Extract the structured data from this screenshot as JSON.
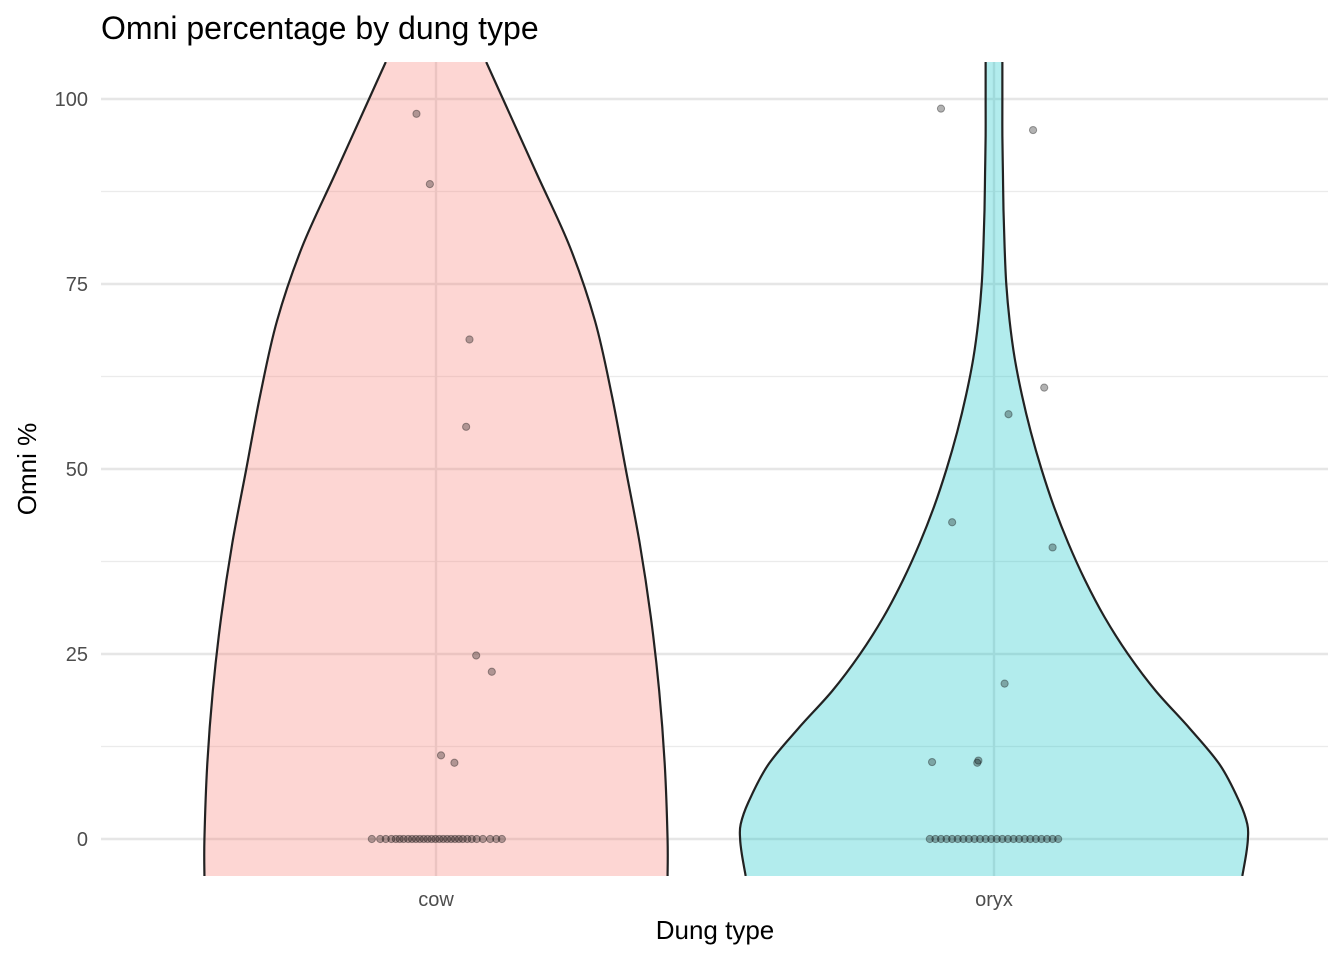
{
  "chart_data": {
    "type": "violin",
    "title": "Omni percentage by dung type",
    "xlabel": "Dung type",
    "ylabel": "Omni %",
    "categories": [
      "cow",
      "oryx"
    ],
    "ylim": [
      -5,
      105
    ],
    "y_ticks": [
      0,
      25,
      50,
      75,
      100
    ],
    "y_tick_labels": [
      "0",
      "25",
      "50",
      "75",
      "100"
    ],
    "grid": true,
    "legend": "none",
    "colors": {
      "cow": "#F8766D",
      "oryx": "#00BFC4",
      "fill_opacity": 0.3,
      "outline": "#222222",
      "points": "#000000"
    },
    "series": [
      {
        "category": "cow",
        "points": [
          {
            "jitter": -0.035,
            "y": 98
          },
          {
            "jitter": -0.011,
            "y": 88.5
          },
          {
            "jitter": 0.06,
            "y": 67.5
          },
          {
            "jitter": 0.054,
            "y": 55.7
          },
          {
            "jitter": 0.072,
            "y": 24.8
          },
          {
            "jitter": 0.1,
            "y": 22.6
          },
          {
            "jitter": 0.009,
            "y": 11.3
          },
          {
            "jitter": 0.033,
            "y": 10.3
          },
          {
            "jitter": -0.115,
            "y": 0
          },
          {
            "jitter": -0.1,
            "y": 0
          },
          {
            "jitter": -0.09,
            "y": 0
          },
          {
            "jitter": -0.08,
            "y": 0
          },
          {
            "jitter": -0.072,
            "y": 0
          },
          {
            "jitter": -0.065,
            "y": 0
          },
          {
            "jitter": -0.058,
            "y": 0
          },
          {
            "jitter": -0.05,
            "y": 0
          },
          {
            "jitter": -0.043,
            "y": 0
          },
          {
            "jitter": -0.036,
            "y": 0
          },
          {
            "jitter": -0.029,
            "y": 0
          },
          {
            "jitter": -0.022,
            "y": 0
          },
          {
            "jitter": -0.015,
            "y": 0
          },
          {
            "jitter": -0.008,
            "y": 0
          },
          {
            "jitter": -0.001,
            "y": 0
          },
          {
            "jitter": 0.006,
            "y": 0
          },
          {
            "jitter": 0.013,
            "y": 0
          },
          {
            "jitter": 0.02,
            "y": 0
          },
          {
            "jitter": 0.027,
            "y": 0
          },
          {
            "jitter": 0.034,
            "y": 0
          },
          {
            "jitter": 0.041,
            "y": 0
          },
          {
            "jitter": 0.048,
            "y": 0
          },
          {
            "jitter": 0.056,
            "y": 0
          },
          {
            "jitter": 0.064,
            "y": 0
          },
          {
            "jitter": 0.073,
            "y": 0
          },
          {
            "jitter": 0.084,
            "y": 0
          },
          {
            "jitter": 0.097,
            "y": 0
          },
          {
            "jitter": 0.108,
            "y": 0
          },
          {
            "jitter": 0.118,
            "y": 0
          }
        ],
        "density": [
          [
            -5,
            0.415
          ],
          [
            0,
            0.415
          ],
          [
            10,
            0.41
          ],
          [
            20,
            0.4
          ],
          [
            30,
            0.385
          ],
          [
            40,
            0.365
          ],
          [
            50,
            0.34
          ],
          [
            60,
            0.315
          ],
          [
            70,
            0.285
          ],
          [
            80,
            0.24
          ],
          [
            90,
            0.18
          ],
          [
            100,
            0.12
          ],
          [
            105,
            0.09
          ]
        ]
      },
      {
        "category": "oryx",
        "points": [
          {
            "jitter": -0.095,
            "y": 98.7
          },
          {
            "jitter": 0.07,
            "y": 95.8
          },
          {
            "jitter": 0.09,
            "y": 61
          },
          {
            "jitter": 0.026,
            "y": 57.4
          },
          {
            "jitter": -0.075,
            "y": 42.8
          },
          {
            "jitter": 0.105,
            "y": 39.4
          },
          {
            "jitter": 0.019,
            "y": 21
          },
          {
            "jitter": -0.111,
            "y": 10.4
          },
          {
            "jitter": -0.03,
            "y": 10.3
          },
          {
            "jitter": -0.028,
            "y": 10.6
          },
          {
            "jitter": -0.115,
            "y": 0
          },
          {
            "jitter": -0.105,
            "y": 0
          },
          {
            "jitter": -0.095,
            "y": 0
          },
          {
            "jitter": -0.085,
            "y": 0
          },
          {
            "jitter": -0.075,
            "y": 0
          },
          {
            "jitter": -0.065,
            "y": 0
          },
          {
            "jitter": -0.055,
            "y": 0
          },
          {
            "jitter": -0.045,
            "y": 0
          },
          {
            "jitter": -0.035,
            "y": 0
          },
          {
            "jitter": -0.025,
            "y": 0
          },
          {
            "jitter": -0.015,
            "y": 0
          },
          {
            "jitter": -0.005,
            "y": 0
          },
          {
            "jitter": 0.005,
            "y": 0
          },
          {
            "jitter": 0.015,
            "y": 0
          },
          {
            "jitter": 0.025,
            "y": 0
          },
          {
            "jitter": 0.035,
            "y": 0
          },
          {
            "jitter": 0.045,
            "y": 0
          },
          {
            "jitter": 0.055,
            "y": 0
          },
          {
            "jitter": 0.065,
            "y": 0
          },
          {
            "jitter": 0.075,
            "y": 0
          },
          {
            "jitter": 0.085,
            "y": 0
          },
          {
            "jitter": 0.095,
            "y": 0
          },
          {
            "jitter": 0.105,
            "y": 0
          },
          {
            "jitter": 0.115,
            "y": 0
          }
        ],
        "density": [
          [
            -5,
            0.445
          ],
          [
            -2,
            0.452
          ],
          [
            0,
            0.455
          ],
          [
            2,
            0.454
          ],
          [
            5,
            0.44
          ],
          [
            10,
            0.405
          ],
          [
            15,
            0.35
          ],
          [
            20,
            0.29
          ],
          [
            25,
            0.24
          ],
          [
            30,
            0.198
          ],
          [
            35,
            0.163
          ],
          [
            40,
            0.133
          ],
          [
            45,
            0.107
          ],
          [
            50,
            0.085
          ],
          [
            55,
            0.066
          ],
          [
            60,
            0.05
          ],
          [
            65,
            0.037
          ],
          [
            70,
            0.028
          ],
          [
            75,
            0.022
          ],
          [
            80,
            0.019
          ],
          [
            85,
            0.017
          ],
          [
            90,
            0.016
          ],
          [
            95,
            0.015
          ],
          [
            100,
            0.015
          ],
          [
            105,
            0.015
          ]
        ]
      }
    ]
  }
}
